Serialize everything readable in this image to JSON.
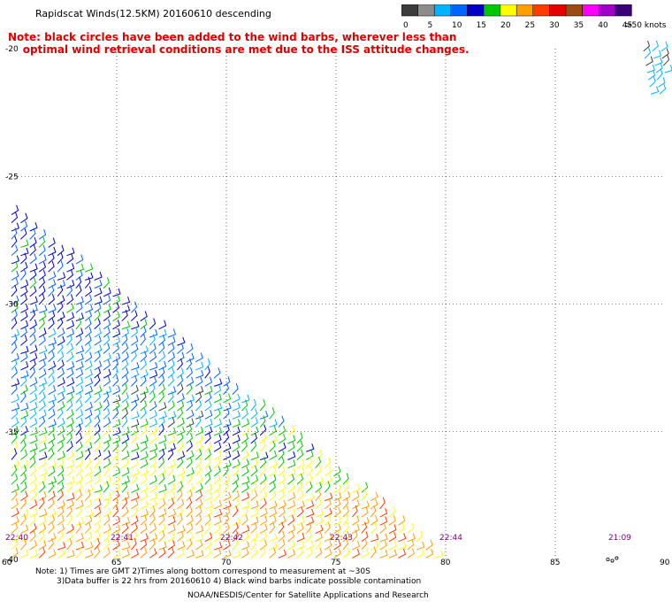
{
  "title": "Rapidscat Winds(12.5KM) 20160610 descending",
  "note_line1": "Note: black circles have been added to the wind barbs, wherever less than",
  "note_line2": "optimal wind retrieval conditions are met due to the ISS attitude changes.",
  "colorbar": {
    "unit_label": ">50 knots",
    "ticks": [
      "0",
      "5",
      "10",
      "15",
      "20",
      "25",
      "30",
      "35",
      "40",
      "45"
    ],
    "colors": [
      "#3c3c3c",
      "#8c8c8c",
      "#00b4ff",
      "#0064ff",
      "#0000c8",
      "#00c800",
      "#ffff00",
      "#ffa000",
      "#ff3c00",
      "#e60000",
      "#9b4b14",
      "#ff00ff",
      "#a000c8",
      "#3c0078"
    ]
  },
  "map": {
    "lon_labels": [
      "60",
      "65",
      "70",
      "75",
      "80",
      "85",
      "90"
    ],
    "lat_labels": [
      "-20",
      "-25",
      "-30",
      "-35",
      "-40"
    ],
    "time_labels": [
      "22:40",
      "22:41",
      "22:42",
      "22:43",
      "22:44",
      "21:09"
    ],
    "lon_range": [
      60,
      90
    ],
    "lat_range": [
      -40,
      -20
    ]
  },
  "footer": {
    "line1": "Note: 1) Times are GMT 2)Times along bottom correspond to measurement at ~30S",
    "line2": "3)Data buffer is 22 hrs from 20160610 4) Black wind barbs indicate possible contamination",
    "line3": "NOAA/NESDIS/Center for Satellite Applications and Research"
  }
}
